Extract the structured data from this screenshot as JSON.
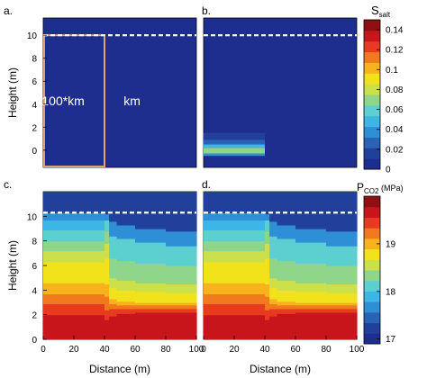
{
  "colormap": [
    "#1e2e8f",
    "#21409b",
    "#2a63b5",
    "#2f8fd6",
    "#3cb6e6",
    "#5ccfd0",
    "#8fd58a",
    "#cbe04a",
    "#f2e21c",
    "#f8b21c",
    "#f27a1e",
    "#e73a20",
    "#c8141b",
    "#8e0f14"
  ],
  "chart_data": [
    {
      "panel_label": "a.",
      "type": "heatmap",
      "field": "S_salt",
      "ylabel": "Height (m)",
      "xlabel": "",
      "xlim": [
        0,
        100
      ],
      "ylim": [
        -1.5,
        11.5
      ],
      "yticks": [
        0,
        2,
        4,
        6,
        8,
        10
      ],
      "xticks": [],
      "background_value": 0.0,
      "cells": [],
      "dashed_line_y": 10,
      "annotations": [
        {
          "text": "100*km",
          "x": 13,
          "y": 3.9
        },
        {
          "text": "km",
          "x": 58,
          "y": 3.9
        }
      ],
      "outlined_box": {
        "x0": 0,
        "x1": 40,
        "y0": -1.5,
        "y1": 10
      }
    },
    {
      "panel_label": "b.",
      "type": "heatmap",
      "field": "S_salt",
      "ylabel": "",
      "xlabel": "",
      "xlim": [
        0,
        100
      ],
      "ylim": [
        -1.5,
        11.5
      ],
      "yticks": [],
      "xticks": [],
      "background_value": 0.0,
      "cells": [
        {
          "x0": 0,
          "x1": 40,
          "y0": 0.9,
          "y1": 1.5,
          "value": 0.015
        },
        {
          "x0": 0,
          "x1": 40,
          "y0": 0.5,
          "y1": 0.9,
          "value": 0.025
        },
        {
          "x0": 0,
          "x1": 40,
          "y0": 0.2,
          "y1": 0.5,
          "value": 0.045
        },
        {
          "x0": 0,
          "x1": 40,
          "y0": -0.3,
          "y1": 0.2,
          "value": 0.065
        },
        {
          "x0": 0,
          "x1": 40,
          "y0": -0.5,
          "y1": -0.3,
          "value": 0.035
        }
      ],
      "dashed_line_y": 10
    },
    {
      "panel_label": "c.",
      "type": "heatmap",
      "field": "P_CO2",
      "ylabel": "Height (m)",
      "xlabel": "Distance (m)",
      "xlim": [
        0,
        100
      ],
      "ylim": [
        0,
        12
      ],
      "yticks": [
        0,
        2,
        4,
        6,
        8,
        10
      ],
      "xticks": [
        0,
        20,
        40,
        60,
        80,
        100
      ],
      "dashed_line_y": 10.3,
      "column_profiles": [
        {
          "x0": 0,
          "x1": 40,
          "levels": [
            {
              "y_top": 2.0,
              "value": 19.75
            },
            {
              "y_top": 2.9,
              "value": 19.45
            },
            {
              "y_top": 3.7,
              "value": 19.25
            },
            {
              "y_top": 4.6,
              "value": 19.05
            },
            {
              "y_top": 5.4,
              "value": 18.85
            },
            {
              "y_top": 6.3,
              "value": 18.7
            },
            {
              "y_top": 7.2,
              "value": 18.55
            },
            {
              "y_top": 8.0,
              "value": 18.4
            },
            {
              "y_top": 8.9,
              "value": 18.2
            },
            {
              "y_top": 9.7,
              "value": 17.85
            },
            {
              "y_top": 10.3,
              "value": 17.6
            },
            {
              "y_top": 12,
              "value": 17.1
            }
          ]
        },
        {
          "x0": 40,
          "x1": 43,
          "levels": [
            {
              "y_top": 1.6,
              "value": 19.75
            },
            {
              "y_top": 2.4,
              "value": 19.5
            },
            {
              "y_top": 3.5,
              "value": 19.3
            },
            {
              "y_top": 4.5,
              "value": 19.1
            },
            {
              "y_top": 5.5,
              "value": 18.9
            },
            {
              "y_top": 6.6,
              "value": 18.7
            },
            {
              "y_top": 7.8,
              "value": 18.5
            },
            {
              "y_top": 8.8,
              "value": 18.3
            },
            {
              "y_top": 9.7,
              "value": 18.0
            },
            {
              "y_top": 10.2,
              "value": 17.7
            },
            {
              "y_top": 12,
              "value": 17.1
            }
          ]
        },
        {
          "x0": 43,
          "x1": 48,
          "levels": [
            {
              "y_top": 1.9,
              "value": 19.75
            },
            {
              "y_top": 2.5,
              "value": 19.5
            },
            {
              "y_top": 2.9,
              "value": 19.3
            },
            {
              "y_top": 3.3,
              "value": 19.1
            },
            {
              "y_top": 3.6,
              "value": 18.9
            },
            {
              "y_top": 4.2,
              "value": 18.7
            },
            {
              "y_top": 5.0,
              "value": 18.5
            },
            {
              "y_top": 6.6,
              "value": 18.3
            },
            {
              "y_top": 8.4,
              "value": 18.0
            },
            {
              "y_top": 9.6,
              "value": 17.7
            },
            {
              "y_top": 12,
              "value": 17.1
            }
          ]
        },
        {
          "x0": 48,
          "x1": 60,
          "levels": [
            {
              "y_top": 2.1,
              "value": 19.75
            },
            {
              "y_top": 2.5,
              "value": 19.5
            },
            {
              "y_top": 2.8,
              "value": 19.3
            },
            {
              "y_top": 3.1,
              "value": 19.1
            },
            {
              "y_top": 3.4,
              "value": 18.9
            },
            {
              "y_top": 4.0,
              "value": 18.7
            },
            {
              "y_top": 4.8,
              "value": 18.5
            },
            {
              "y_top": 6.4,
              "value": 18.3
            },
            {
              "y_top": 8.2,
              "value": 18.0
            },
            {
              "y_top": 9.3,
              "value": 17.7
            },
            {
              "y_top": 12,
              "value": 17.1
            }
          ]
        },
        {
          "x0": 60,
          "x1": 80,
          "levels": [
            {
              "y_top": 2.2,
              "value": 19.75
            },
            {
              "y_top": 2.5,
              "value": 19.5
            },
            {
              "y_top": 2.8,
              "value": 19.3
            },
            {
              "y_top": 3.0,
              "value": 19.1
            },
            {
              "y_top": 3.3,
              "value": 18.9
            },
            {
              "y_top": 3.9,
              "value": 18.7
            },
            {
              "y_top": 4.6,
              "value": 18.5
            },
            {
              "y_top": 6.2,
              "value": 18.3
            },
            {
              "y_top": 7.9,
              "value": 18.0
            },
            {
              "y_top": 9.0,
              "value": 17.7
            },
            {
              "y_top": 12,
              "value": 17.1
            }
          ]
        },
        {
          "x0": 80,
          "x1": 100,
          "levels": [
            {
              "y_top": 2.2,
              "value": 19.75
            },
            {
              "y_top": 2.5,
              "value": 19.5
            },
            {
              "y_top": 2.8,
              "value": 19.3
            },
            {
              "y_top": 3.0,
              "value": 19.1
            },
            {
              "y_top": 3.2,
              "value": 18.9
            },
            {
              "y_top": 3.8,
              "value": 18.7
            },
            {
              "y_top": 4.5,
              "value": 18.5
            },
            {
              "y_top": 6.0,
              "value": 18.3
            },
            {
              "y_top": 7.6,
              "value": 18.0
            },
            {
              "y_top": 8.8,
              "value": 17.7
            },
            {
              "y_top": 12,
              "value": 17.1
            }
          ]
        }
      ]
    },
    {
      "panel_label": "d.",
      "type": "heatmap",
      "field": "P_CO2",
      "ylabel": "",
      "xlabel": "Distance (m)",
      "xlim": [
        0,
        100
      ],
      "ylim": [
        0,
        12
      ],
      "yticks": [],
      "xticks": [
        0,
        20,
        40,
        60,
        80,
        100
      ],
      "dashed_line_y": 10.3,
      "column_profiles": [
        {
          "x0": 0,
          "x1": 40,
          "levels": [
            {
              "y_top": 2.0,
              "value": 19.75
            },
            {
              "y_top": 2.9,
              "value": 19.45
            },
            {
              "y_top": 3.7,
              "value": 19.25
            },
            {
              "y_top": 4.6,
              "value": 19.05
            },
            {
              "y_top": 5.4,
              "value": 18.85
            },
            {
              "y_top": 6.3,
              "value": 18.7
            },
            {
              "y_top": 7.2,
              "value": 18.55
            },
            {
              "y_top": 8.0,
              "value": 18.4
            },
            {
              "y_top": 8.9,
              "value": 18.2
            },
            {
              "y_top": 9.7,
              "value": 17.85
            },
            {
              "y_top": 10.3,
              "value": 17.6
            },
            {
              "y_top": 12,
              "value": 17.1
            }
          ]
        },
        {
          "x0": 40,
          "x1": 43,
          "levels": [
            {
              "y_top": 1.6,
              "value": 19.75
            },
            {
              "y_top": 2.4,
              "value": 19.5
            },
            {
              "y_top": 3.5,
              "value": 19.3
            },
            {
              "y_top": 4.5,
              "value": 19.1
            },
            {
              "y_top": 5.5,
              "value": 18.9
            },
            {
              "y_top": 6.6,
              "value": 18.7
            },
            {
              "y_top": 7.8,
              "value": 18.5
            },
            {
              "y_top": 8.8,
              "value": 18.3
            },
            {
              "y_top": 9.7,
              "value": 18.0
            },
            {
              "y_top": 10.2,
              "value": 17.7
            },
            {
              "y_top": 12,
              "value": 17.1
            }
          ]
        },
        {
          "x0": 43,
          "x1": 48,
          "levels": [
            {
              "y_top": 1.9,
              "value": 19.75
            },
            {
              "y_top": 2.5,
              "value": 19.5
            },
            {
              "y_top": 2.9,
              "value": 19.3
            },
            {
              "y_top": 3.3,
              "value": 19.1
            },
            {
              "y_top": 3.6,
              "value": 18.9
            },
            {
              "y_top": 4.2,
              "value": 18.7
            },
            {
              "y_top": 5.0,
              "value": 18.5
            },
            {
              "y_top": 6.6,
              "value": 18.3
            },
            {
              "y_top": 8.4,
              "value": 18.0
            },
            {
              "y_top": 9.6,
              "value": 17.7
            },
            {
              "y_top": 12,
              "value": 17.1
            }
          ]
        },
        {
          "x0": 48,
          "x1": 60,
          "levels": [
            {
              "y_top": 2.1,
              "value": 19.75
            },
            {
              "y_top": 2.5,
              "value": 19.5
            },
            {
              "y_top": 2.8,
              "value": 19.3
            },
            {
              "y_top": 3.1,
              "value": 19.1
            },
            {
              "y_top": 3.4,
              "value": 18.9
            },
            {
              "y_top": 4.0,
              "value": 18.7
            },
            {
              "y_top": 4.8,
              "value": 18.5
            },
            {
              "y_top": 6.4,
              "value": 18.3
            },
            {
              "y_top": 8.2,
              "value": 18.0
            },
            {
              "y_top": 9.3,
              "value": 17.7
            },
            {
              "y_top": 12,
              "value": 17.1
            }
          ]
        },
        {
          "x0": 60,
          "x1": 80,
          "levels": [
            {
              "y_top": 2.2,
              "value": 19.75
            },
            {
              "y_top": 2.5,
              "value": 19.5
            },
            {
              "y_top": 2.8,
              "value": 19.3
            },
            {
              "y_top": 3.0,
              "value": 19.1
            },
            {
              "y_top": 3.3,
              "value": 18.9
            },
            {
              "y_top": 3.9,
              "value": 18.7
            },
            {
              "y_top": 4.6,
              "value": 18.5
            },
            {
              "y_top": 6.2,
              "value": 18.3
            },
            {
              "y_top": 7.9,
              "value": 18.0
            },
            {
              "y_top": 9.0,
              "value": 17.7
            },
            {
              "y_top": 12,
              "value": 17.1
            }
          ]
        },
        {
          "x0": 80,
          "x1": 100,
          "levels": [
            {
              "y_top": 2.2,
              "value": 19.75
            },
            {
              "y_top": 2.5,
              "value": 19.5
            },
            {
              "y_top": 2.8,
              "value": 19.3
            },
            {
              "y_top": 3.0,
              "value": 19.1
            },
            {
              "y_top": 3.2,
              "value": 18.9
            },
            {
              "y_top": 3.8,
              "value": 18.7
            },
            {
              "y_top": 4.5,
              "value": 18.5
            },
            {
              "y_top": 6.0,
              "value": 18.3
            },
            {
              "y_top": 7.6,
              "value": 18.0
            },
            {
              "y_top": 8.8,
              "value": 17.7
            },
            {
              "y_top": 12,
              "value": 17.1
            }
          ]
        }
      ]
    }
  ],
  "colorbars": [
    {
      "title": "S",
      "title_sub": "salt",
      "title_unit": "",
      "min": 0,
      "max": 0.15,
      "ticks": [
        0,
        0.02,
        0.04,
        0.06,
        0.08,
        0.1,
        0.12,
        0.14
      ],
      "tick_labels": [
        "0",
        "0.02",
        "0.04",
        "0.06",
        "0.08",
        "0.1",
        "0.12",
        "0.14"
      ]
    },
    {
      "title": "P",
      "title_sub": "CO2",
      "title_unit": " (MPa)",
      "min": 16.9,
      "max": 20.0,
      "ticks": [
        17,
        18,
        19
      ],
      "tick_labels": [
        "17",
        "18",
        "19"
      ]
    }
  ]
}
